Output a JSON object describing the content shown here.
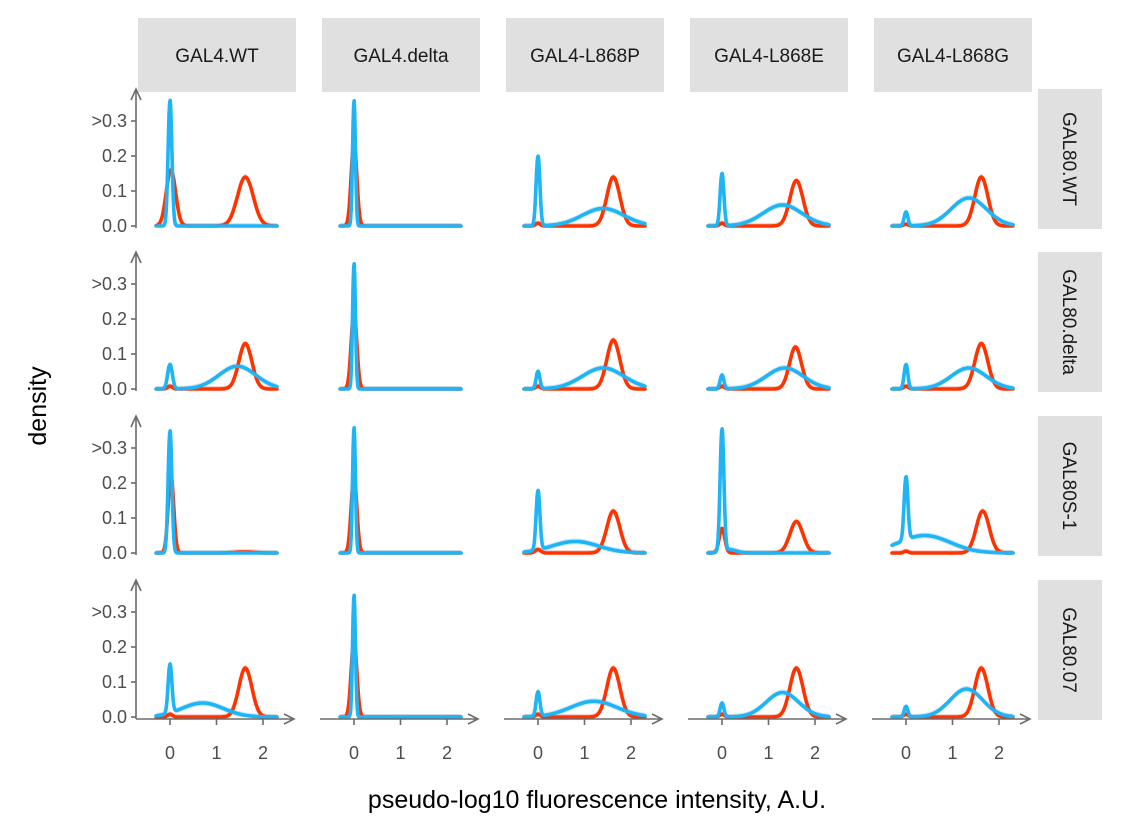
{
  "chart_data": {
    "type": "line",
    "facet_columns": [
      "GAL4.WT",
      "GAL4.delta",
      "GAL4-L868P",
      "GAL4-L868E",
      "GAL4-L868G"
    ],
    "facet_rows": [
      "GAL80.WT",
      "GAL80.delta",
      "GAL80S-1",
      "GAL80.07"
    ],
    "xlabel": "pseudo-log10 fluorescence intensity, A.U.",
    "ylabel": "density",
    "x_ticks": [
      "0",
      "1",
      "2"
    ],
    "x_tick_values": [
      0,
      1,
      2
    ],
    "y_ticks": [
      "0.0",
      "0.1",
      "0.2",
      ">0.3"
    ],
    "y_tick_values": [
      0,
      0.1,
      0.2,
      0.3
    ],
    "xlim": [
      -0.6,
      2.8
    ],
    "ylim": [
      0,
      0.36
    ],
    "colors": {
      "red": "#ff3300",
      "blue": "#1eb4f5",
      "ribbon_red": "#f7b3ae",
      "ribbon_blue": "#a8dbef",
      "strip": "#e0e0e0"
    },
    "legend": "none",
    "grid": false,
    "series": [
      {
        "color": "red",
        "column": "GAL4.WT",
        "row": "GAL80.WT",
        "peaks": [
          [
            0.02,
            0.1,
            0.16
          ],
          [
            1.62,
            0.17,
            0.14
          ]
        ]
      },
      {
        "color": "blue",
        "column": "GAL4.WT",
        "row": "GAL80.WT",
        "peaks": [
          [
            0.0,
            0.04,
            0.36
          ]
        ]
      },
      {
        "color": "red",
        "column": "GAL4.delta",
        "row": "GAL80.WT",
        "peaks": [
          [
            0.0,
            0.06,
            0.24
          ]
        ]
      },
      {
        "color": "blue",
        "column": "GAL4.delta",
        "row": "GAL80.WT",
        "peaks": [
          [
            0.0,
            0.03,
            0.36
          ]
        ]
      },
      {
        "color": "red",
        "column": "GAL4-L868P",
        "row": "GAL80.WT",
        "peaks": [
          [
            0.0,
            0.05,
            0.008
          ],
          [
            1.62,
            0.14,
            0.14
          ]
        ]
      },
      {
        "color": "blue",
        "column": "GAL4-L868P",
        "row": "GAL80.WT",
        "peaks": [
          [
            0.0,
            0.04,
            0.2
          ],
          [
            1.4,
            0.45,
            0.05
          ]
        ]
      },
      {
        "color": "red",
        "column": "GAL4-L868E",
        "row": "GAL80.WT",
        "peaks": [
          [
            0.0,
            0.05,
            0.008
          ],
          [
            1.6,
            0.14,
            0.13
          ]
        ]
      },
      {
        "color": "blue",
        "column": "GAL4-L868E",
        "row": "GAL80.WT",
        "peaks": [
          [
            0.0,
            0.04,
            0.15
          ],
          [
            1.3,
            0.42,
            0.06
          ]
        ]
      },
      {
        "color": "red",
        "column": "GAL4-L868G",
        "row": "GAL80.WT",
        "peaks": [
          [
            0.0,
            0.05,
            0.005
          ],
          [
            1.62,
            0.14,
            0.14
          ]
        ]
      },
      {
        "color": "blue",
        "column": "GAL4-L868G",
        "row": "GAL80.WT",
        "peaks": [
          [
            0.0,
            0.04,
            0.04
          ],
          [
            1.35,
            0.38,
            0.08
          ]
        ]
      },
      {
        "color": "red",
        "column": "GAL4.WT",
        "row": "GAL80.delta",
        "peaks": [
          [
            0.0,
            0.05,
            0.008
          ],
          [
            1.62,
            0.14,
            0.13
          ]
        ]
      },
      {
        "color": "blue",
        "column": "GAL4.WT",
        "row": "GAL80.delta",
        "peaks": [
          [
            0.0,
            0.05,
            0.07
          ],
          [
            1.45,
            0.4,
            0.065
          ]
        ]
      },
      {
        "color": "red",
        "column": "GAL4.delta",
        "row": "GAL80.delta",
        "peaks": [
          [
            0.0,
            0.06,
            0.22
          ]
        ]
      },
      {
        "color": "blue",
        "column": "GAL4.delta",
        "row": "GAL80.delta",
        "peaks": [
          [
            0.0,
            0.03,
            0.36
          ]
        ]
      },
      {
        "color": "red",
        "column": "GAL4-L868P",
        "row": "GAL80.delta",
        "peaks": [
          [
            0.0,
            0.05,
            0.008
          ],
          [
            1.62,
            0.14,
            0.14
          ]
        ]
      },
      {
        "color": "blue",
        "column": "GAL4-L868P",
        "row": "GAL80.delta",
        "peaks": [
          [
            0.0,
            0.04,
            0.05
          ],
          [
            1.4,
            0.45,
            0.06
          ]
        ]
      },
      {
        "color": "red",
        "column": "GAL4-L868E",
        "row": "GAL80.delta",
        "peaks": [
          [
            0.0,
            0.05,
            0.008
          ],
          [
            1.58,
            0.13,
            0.12
          ]
        ]
      },
      {
        "color": "blue",
        "column": "GAL4-L868E",
        "row": "GAL80.delta",
        "peaks": [
          [
            0.0,
            0.04,
            0.04
          ],
          [
            1.35,
            0.4,
            0.06
          ]
        ]
      },
      {
        "color": "red",
        "column": "GAL4-L868G",
        "row": "GAL80.delta",
        "peaks": [
          [
            0.0,
            0.05,
            0.008
          ],
          [
            1.62,
            0.14,
            0.13
          ]
        ]
      },
      {
        "color": "blue",
        "column": "GAL4-L868G",
        "row": "GAL80.delta",
        "peaks": [
          [
            0.0,
            0.04,
            0.07
          ],
          [
            1.35,
            0.38,
            0.06
          ]
        ]
      },
      {
        "color": "red",
        "column": "GAL4.WT",
        "row": "GAL80S-1",
        "peaks": [
          [
            0.02,
            0.06,
            0.22
          ],
          [
            1.6,
            0.2,
            0.003
          ]
        ]
      },
      {
        "color": "blue",
        "column": "GAL4.WT",
        "row": "GAL80S-1",
        "peaks": [
          [
            0.0,
            0.04,
            0.35
          ]
        ]
      },
      {
        "color": "red",
        "column": "GAL4.delta",
        "row": "GAL80S-1",
        "peaks": [
          [
            0.0,
            0.06,
            0.22
          ]
        ]
      },
      {
        "color": "blue",
        "column": "GAL4.delta",
        "row": "GAL80S-1",
        "peaks": [
          [
            0.0,
            0.03,
            0.36
          ]
        ]
      },
      {
        "color": "red",
        "column": "GAL4-L868P",
        "row": "GAL80S-1",
        "peaks": [
          [
            0.0,
            0.06,
            0.01
          ],
          [
            1.62,
            0.14,
            0.12
          ]
        ]
      },
      {
        "color": "blue",
        "column": "GAL4-L868P",
        "row": "GAL80S-1",
        "peaks": [
          [
            0.0,
            0.04,
            0.17
          ],
          [
            0.8,
            0.5,
            0.033
          ]
        ]
      },
      {
        "color": "red",
        "column": "GAL4-L868E",
        "row": "GAL80S-1",
        "peaks": [
          [
            0.0,
            0.06,
            0.07
          ],
          [
            1.6,
            0.14,
            0.09
          ]
        ]
      },
      {
        "color": "blue",
        "column": "GAL4-L868E",
        "row": "GAL80S-1",
        "peaks": [
          [
            0.0,
            0.04,
            0.35
          ],
          [
            0.15,
            0.15,
            0.01
          ]
        ]
      },
      {
        "color": "red",
        "column": "GAL4-L868G",
        "row": "GAL80S-1",
        "peaks": [
          [
            0.0,
            0.05,
            0.005
          ],
          [
            1.65,
            0.14,
            0.12
          ]
        ]
      },
      {
        "color": "blue",
        "column": "GAL4-L868G",
        "row": "GAL80S-1",
        "peaks": [
          [
            0.0,
            0.04,
            0.18
          ],
          [
            0.4,
            0.55,
            0.05
          ]
        ]
      },
      {
        "color": "red",
        "column": "GAL4.WT",
        "row": "GAL80.07",
        "peaks": [
          [
            0.0,
            0.05,
            0.008
          ],
          [
            1.62,
            0.14,
            0.14
          ]
        ]
      },
      {
        "color": "blue",
        "column": "GAL4.WT",
        "row": "GAL80.07",
        "peaks": [
          [
            0.0,
            0.04,
            0.14
          ],
          [
            0.7,
            0.45,
            0.04
          ]
        ]
      },
      {
        "color": "red",
        "column": "GAL4.delta",
        "row": "GAL80.07",
        "peaks": [
          [
            0.0,
            0.06,
            0.22
          ]
        ]
      },
      {
        "color": "blue",
        "column": "GAL4.delta",
        "row": "GAL80.07",
        "peaks": [
          [
            0.0,
            0.03,
            0.35
          ]
        ]
      },
      {
        "color": "red",
        "column": "GAL4-L868P",
        "row": "GAL80.07",
        "peaks": [
          [
            0.0,
            0.05,
            0.008
          ],
          [
            1.62,
            0.14,
            0.14
          ]
        ]
      },
      {
        "color": "blue",
        "column": "GAL4-L868P",
        "row": "GAL80.07",
        "peaks": [
          [
            0.0,
            0.04,
            0.07
          ],
          [
            1.2,
            0.5,
            0.045
          ]
        ]
      },
      {
        "color": "red",
        "column": "GAL4-L868E",
        "row": "GAL80.07",
        "peaks": [
          [
            0.0,
            0.05,
            0.008
          ],
          [
            1.6,
            0.14,
            0.14
          ]
        ]
      },
      {
        "color": "blue",
        "column": "GAL4-L868E",
        "row": "GAL80.07",
        "peaks": [
          [
            0.0,
            0.04,
            0.04
          ],
          [
            1.3,
            0.35,
            0.07
          ]
        ]
      },
      {
        "color": "red",
        "column": "GAL4-L868G",
        "row": "GAL80.07",
        "peaks": [
          [
            0.0,
            0.05,
            0.008
          ],
          [
            1.62,
            0.14,
            0.14
          ]
        ]
      },
      {
        "color": "blue",
        "column": "GAL4-L868G",
        "row": "GAL80.07",
        "peaks": [
          [
            0.0,
            0.04,
            0.03
          ],
          [
            1.3,
            0.35,
            0.08
          ]
        ]
      }
    ]
  }
}
